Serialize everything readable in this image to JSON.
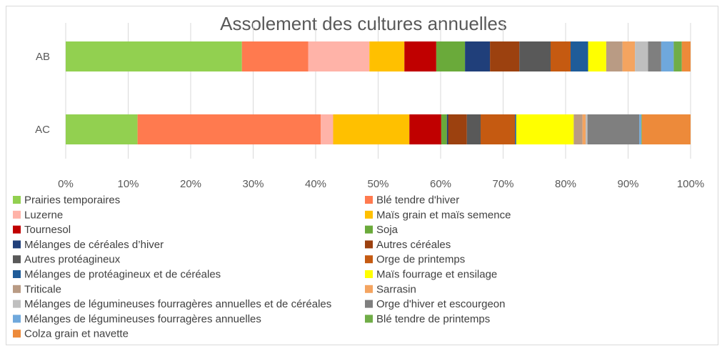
{
  "chart_data": {
    "type": "bar",
    "orientation": "horizontal",
    "stacked": "percent",
    "title": "Assolement des cultures annuelles",
    "categories": [
      "AB",
      "AC"
    ],
    "xlim": [
      0,
      100
    ],
    "xticks": [
      "0%",
      "10%",
      "20%",
      "30%",
      "40%",
      "50%",
      "60%",
      "70%",
      "80%",
      "90%",
      "100%"
    ],
    "grid": true,
    "legend_position": "bottom",
    "series": [
      {
        "name": "Prairies temporaires",
        "color": "#92D050",
        "values": [
          28.2,
          11.5
        ]
      },
      {
        "name": "Blé tendre d'hiver",
        "color": "#FF7A4F",
        "values": [
          10.6,
          29.3
        ]
      },
      {
        "name": "Luzerne",
        "color": "#FFB3A8",
        "values": [
          9.8,
          2.0
        ]
      },
      {
        "name": "Maïs grain et maïs semence",
        "color": "#FFC000",
        "values": [
          5.6,
          12.2
        ]
      },
      {
        "name": "Tournesol",
        "color": "#C00000",
        "values": [
          5.1,
          5.1
        ]
      },
      {
        "name": "Soja",
        "color": "#6AAA3A",
        "values": [
          4.6,
          0.9
        ]
      },
      {
        "name": "Mélanges de céréales d’hiver",
        "color": "#203F7A",
        "values": [
          4.0,
          0.2
        ]
      },
      {
        "name": "Autres céréales",
        "color": "#9C410F",
        "values": [
          4.7,
          3.0
        ]
      },
      {
        "name": "Autres protéagineux",
        "color": "#595959",
        "values": [
          5.0,
          2.2
        ]
      },
      {
        "name": "Orge de printemps",
        "color": "#C55A11",
        "values": [
          3.2,
          5.5
        ]
      },
      {
        "name": "Mélanges de protéagineux et de céréales",
        "color": "#1F5C99",
        "values": [
          2.8,
          0.2
        ]
      },
      {
        "name": "Maïs fourrage et ensilage",
        "color": "#FFFF00",
        "values": [
          2.9,
          9.2
        ]
      },
      {
        "name": "Triticale",
        "color": "#B99B84",
        "values": [
          2.6,
          1.4
        ]
      },
      {
        "name": "Sarrasin",
        "color": "#F4A460",
        "values": [
          2.0,
          0.5
        ]
      },
      {
        "name": "Mélanges de légumineuses fourragères annuelles et de céréales",
        "color": "#BFBFBF",
        "values": [
          2.1,
          0.3
        ]
      },
      {
        "name": "Orge d'hiver et escourgeon",
        "color": "#7F7F7F",
        "values": [
          2.1,
          8.3
        ]
      },
      {
        "name": "Mélanges de légumineuses fourragères annuelles",
        "color": "#6FA8DC",
        "values": [
          2.0,
          0.3
        ]
      },
      {
        "name": "Blé tendre de printemps",
        "color": "#70AD47",
        "values": [
          1.3,
          0.1
        ]
      },
      {
        "name": "Colza grain et navette",
        "color": "#ED8A3A",
        "values": [
          1.4,
          7.8
        ]
      }
    ]
  }
}
